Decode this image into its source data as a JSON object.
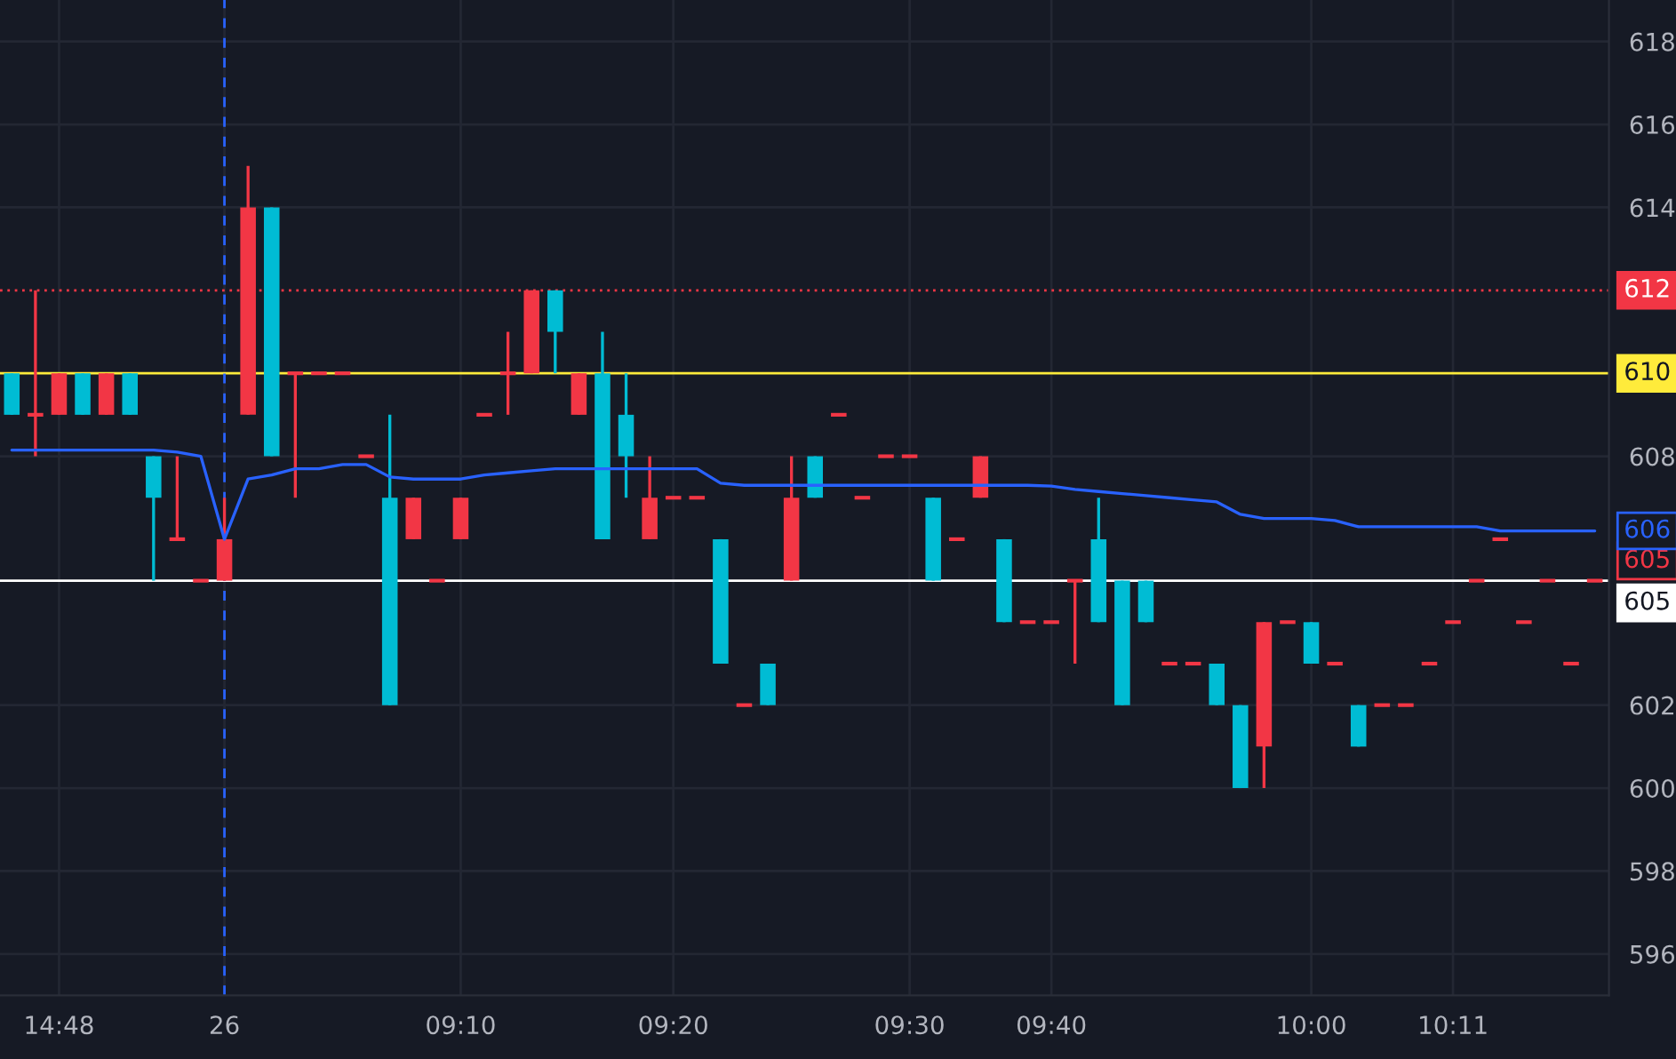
{
  "chart_data": {
    "type": "candlestick",
    "categories": [
      null,
      null,
      "14:48",
      null,
      null,
      null,
      null,
      null,
      null,
      "26",
      null,
      null,
      null,
      null,
      null,
      null,
      null,
      null,
      null,
      "09:10",
      null,
      null,
      null,
      null,
      null,
      null,
      null,
      null,
      "09:20",
      null,
      null,
      null,
      null,
      null,
      null,
      null,
      null,
      null,
      "09:30",
      null,
      null,
      null,
      null,
      null,
      "09:40",
      null,
      null,
      null,
      null,
      null,
      null,
      null,
      null,
      null,
      null,
      "10:00",
      null,
      null,
      null,
      null,
      null,
      "10:11",
      null,
      null,
      null,
      null,
      null,
      null
    ],
    "ohlc": [
      [
        609,
        610,
        609,
        610
      ],
      [
        609,
        612,
        608,
        609
      ],
      [
        610,
        610,
        609,
        609
      ],
      [
        609,
        610,
        609,
        610
      ],
      [
        610,
        610,
        609,
        609
      ],
      [
        609,
        610,
        609,
        610
      ],
      [
        607,
        608,
        605,
        608
      ],
      [
        606,
        608,
        606,
        606
      ],
      [
        605,
        605,
        605,
        605
      ],
      [
        606,
        607,
        605,
        605
      ],
      [
        614,
        615,
        609,
        609
      ],
      [
        608,
        614,
        608,
        614
      ],
      [
        610,
        610,
        607,
        610
      ],
      [
        610,
        610,
        610,
        610
      ],
      [
        610,
        610,
        610,
        610
      ],
      [
        608,
        608,
        608,
        608
      ],
      [
        602,
        609,
        602,
        607
      ],
      [
        607,
        607,
        606,
        606
      ],
      [
        605,
        605,
        605,
        605
      ],
      [
        607,
        607,
        606,
        606
      ],
      [
        609,
        609,
        609,
        609
      ],
      [
        610,
        611,
        609,
        610
      ],
      [
        612,
        612,
        610,
        610
      ],
      [
        611,
        612,
        610,
        612
      ],
      [
        610,
        610,
        609,
        609
      ],
      [
        606,
        611,
        606,
        610
      ],
      [
        608,
        610,
        607,
        609
      ],
      [
        607,
        608,
        606,
        606
      ],
      [
        607,
        607,
        607,
        607
      ],
      [
        607,
        607,
        607,
        607
      ],
      [
        603,
        606,
        603,
        606
      ],
      [
        602,
        602,
        602,
        602
      ],
      [
        602,
        603,
        602,
        603
      ],
      [
        607,
        608,
        605,
        605
      ],
      [
        607,
        608,
        607,
        608
      ],
      [
        609,
        609,
        609,
        609
      ],
      [
        607,
        607,
        607,
        607
      ],
      [
        608,
        608,
        608,
        608
      ],
      [
        608,
        608,
        608,
        608
      ],
      [
        605,
        607,
        605,
        607
      ],
      [
        606,
        606,
        606,
        606
      ],
      [
        608,
        608,
        607,
        607
      ],
      [
        604,
        606,
        604,
        606
      ],
      [
        604,
        604,
        604,
        604
      ],
      [
        604,
        604,
        604,
        604
      ],
      [
        605,
        605,
        603,
        605
      ],
      [
        604,
        607,
        604,
        606
      ],
      [
        602,
        605,
        602,
        605
      ],
      [
        604,
        605,
        604,
        605
      ],
      [
        603,
        603,
        603,
        603
      ],
      [
        603,
        603,
        603,
        603
      ],
      [
        602,
        603,
        602,
        603
      ],
      [
        600,
        602,
        600,
        602
      ],
      [
        604,
        604,
        600,
        601
      ],
      [
        604,
        604,
        604,
        604
      ],
      [
        603,
        604,
        603,
        604
      ],
      [
        603,
        603,
        603,
        603
      ],
      [
        601,
        602,
        601,
        602
      ],
      [
        602,
        602,
        602,
        602
      ],
      [
        602,
        602,
        602,
        602
      ],
      [
        603,
        603,
        603,
        603
      ],
      [
        604,
        604,
        604,
        604
      ],
      [
        605,
        605,
        605,
        605
      ],
      [
        606,
        606,
        606,
        606
      ],
      [
        604,
        604,
        604,
        604
      ],
      [
        605,
        605,
        605,
        605
      ],
      [
        603,
        603,
        603,
        603
      ],
      [
        605,
        605,
        605,
        605
      ]
    ],
    "colors": [
      "#00bcd4",
      "#f23645",
      "#f23645",
      "#00bcd4",
      "#f23645",
      "#00bcd4",
      "#00bcd4",
      "#f23645",
      "#f23645",
      "#f23645",
      "#f23645",
      "#00bcd4",
      "#f23645",
      "#f23645",
      "#f23645",
      "#f23645",
      "#00bcd4",
      "#f23645",
      "#f23645",
      "#f23645",
      "#f23645",
      "#f23645",
      "#f23645",
      "#00bcd4",
      "#f23645",
      "#00bcd4",
      "#00bcd4",
      "#f23645",
      "#f23645",
      "#f23645",
      "#00bcd4",
      "#f23645",
      "#00bcd4",
      "#f23645",
      "#00bcd4",
      "#f23645",
      "#f23645",
      "#f23645",
      "#f23645",
      "#00bcd4",
      "#f23645",
      "#f23645",
      "#00bcd4",
      "#f23645",
      "#f23645",
      "#f23645",
      "#00bcd4",
      "#00bcd4",
      "#00bcd4",
      "#f23645",
      "#f23645",
      "#00bcd4",
      "#00bcd4",
      "#f23645",
      "#f23645",
      "#00bcd4",
      "#f23645",
      "#00bcd4",
      "#f23645",
      "#f23645",
      "#f23645",
      "#f23645",
      "#f23645",
      "#f23645",
      "#f23645",
      "#f23645",
      "#f23645",
      "#f23645"
    ],
    "series": [
      {
        "type": "line",
        "color": "#2962ff",
        "values": [
          608.15,
          608.15,
          608.15,
          608.15,
          608.15,
          608.15,
          608.15,
          608.1,
          608.0,
          606.0,
          607.45,
          607.55,
          607.7,
          607.7,
          607.8,
          607.8,
          607.5,
          607.45,
          607.45,
          607.45,
          607.55,
          607.6,
          607.65,
          607.7,
          607.7,
          607.7,
          607.7,
          607.7,
          607.7,
          607.7,
          607.35,
          607.3,
          607.3,
          607.3,
          607.3,
          607.3,
          607.3,
          607.3,
          607.3,
          607.3,
          607.3,
          607.3,
          607.3,
          607.3,
          607.28,
          607.2,
          607.15,
          607.1,
          607.05,
          607.0,
          606.95,
          606.9,
          606.6,
          606.5,
          606.5,
          606.5,
          606.45,
          606.3,
          606.3,
          606.3,
          606.3,
          606.3,
          606.3,
          606.2,
          606.2,
          606.2,
          606.2,
          606.2
        ]
      }
    ],
    "ylim": [
      595,
      619
    ],
    "yticks": [
      596,
      598,
      600,
      602,
      608,
      614,
      616,
      618
    ],
    "grid": true,
    "ref_lines": [
      {
        "axis": "y",
        "value": 612,
        "label": "612",
        "color": "#f23645",
        "line_style": "dotted"
      },
      {
        "axis": "y",
        "value": 610,
        "label": "610",
        "color": "#ffeb3b",
        "line_style": "solid"
      },
      {
        "axis": "y",
        "value": 605,
        "label": "605",
        "color": "#ffffff",
        "line_style": "solid"
      },
      {
        "axis": "x",
        "value": "26",
        "color": "#2962ff",
        "line_style": "dashed"
      }
    ],
    "annotations": [
      "606",
      "605"
    ]
  }
}
